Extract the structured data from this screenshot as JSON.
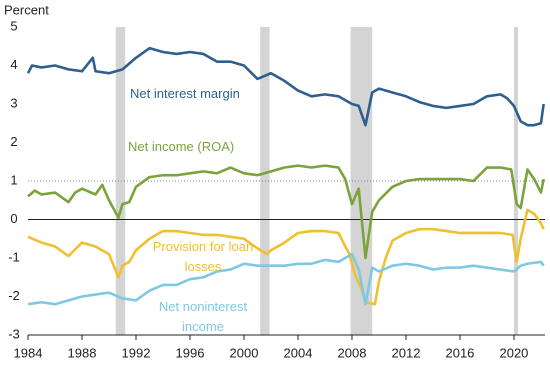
{
  "chart_data": {
    "type": "line",
    "y_label": "Percent",
    "xlim": [
      1984,
      2022.3
    ],
    "xticks": [
      1984,
      1988,
      1992,
      1996,
      2000,
      2004,
      2008,
      2012,
      2016,
      2020
    ],
    "ylim": [
      -3,
      5
    ],
    "yticks": [
      -3,
      -2,
      -1,
      0,
      1,
      2,
      3,
      4,
      5
    ],
    "reference_line": 1,
    "shaded_periods": [
      [
        1990.5,
        1991.2
      ],
      [
        2001.2,
        2001.9
      ],
      [
        2007.9,
        2009.5
      ],
      [
        2020.0,
        2020.3
      ]
    ],
    "series": [
      {
        "name": "Net interest margin",
        "color": "#2e5f8e",
        "x": [
          1984,
          1984.3,
          1985,
          1986,
          1987,
          1988,
          1988.8,
          1989,
          1990,
          1991,
          1992,
          1993,
          1994,
          1995,
          1996,
          1997,
          1998,
          1999,
          2000,
          2001,
          2002,
          2003,
          2004,
          2005,
          2006,
          2007,
          2008,
          2008.5,
          2009,
          2009.5,
          2010,
          2011,
          2012,
          2013,
          2014,
          2015,
          2016,
          2017,
          2018,
          2019,
          2019.5,
          2020,
          2020.5,
          2021,
          2021.5,
          2022,
          2022.2
        ],
        "values": [
          3.8,
          4.0,
          3.95,
          4.0,
          3.9,
          3.85,
          4.2,
          3.85,
          3.8,
          3.9,
          4.2,
          4.45,
          4.35,
          4.3,
          4.35,
          4.3,
          4.1,
          4.1,
          4.0,
          3.65,
          3.8,
          3.6,
          3.35,
          3.2,
          3.25,
          3.2,
          3.0,
          2.95,
          2.45,
          3.3,
          3.4,
          3.3,
          3.2,
          3.05,
          2.95,
          2.9,
          2.95,
          3.0,
          3.2,
          3.25,
          3.15,
          2.95,
          2.55,
          2.45,
          2.45,
          2.5,
          3.0
        ]
      },
      {
        "name": "Net income (ROA)",
        "color": "#7ba33c",
        "x": [
          1984,
          1984.5,
          1985,
          1986,
          1987,
          1987.5,
          1988,
          1989,
          1989.5,
          1990,
          1990.7,
          1991,
          1991.5,
          1992,
          1993,
          1994,
          1995,
          1996,
          1997,
          1998,
          1999,
          2000,
          2001,
          2002,
          2003,
          2004,
          2005,
          2006,
          2007,
          2007.5,
          2008,
          2008.5,
          2009,
          2009.5,
          2010,
          2011,
          2012,
          2013,
          2014,
          2015,
          2016,
          2017,
          2018,
          2019,
          2019.8,
          2020.2,
          2020.5,
          2021,
          2021.5,
          2022,
          2022.2
        ],
        "values": [
          0.6,
          0.75,
          0.65,
          0.7,
          0.45,
          0.7,
          0.8,
          0.65,
          0.9,
          0.5,
          0.05,
          0.4,
          0.45,
          0.85,
          1.1,
          1.15,
          1.15,
          1.2,
          1.25,
          1.2,
          1.35,
          1.2,
          1.15,
          1.25,
          1.35,
          1.4,
          1.35,
          1.4,
          1.35,
          1.05,
          0.4,
          0.8,
          -1.0,
          0.2,
          0.5,
          0.85,
          1.0,
          1.05,
          1.05,
          1.05,
          1.05,
          1.0,
          1.35,
          1.35,
          1.3,
          0.4,
          0.3,
          1.3,
          1.05,
          0.7,
          1.05
        ]
      },
      {
        "name": "Provision for loan losses",
        "color": "#f0c030",
        "x": [
          1984,
          1985,
          1986,
          1987,
          1988,
          1989,
          1990,
          1990.7,
          1991,
          1991.5,
          1992,
          1993,
          1994,
          1995,
          1996,
          1997,
          1998,
          1999,
          2000,
          2001,
          2001.7,
          2002,
          2003,
          2004,
          2005,
          2006,
          2007,
          2007.8,
          2008.3,
          2008.7,
          2009,
          2009.7,
          2010,
          2010.5,
          2011,
          2012,
          2013,
          2014,
          2015,
          2016,
          2017,
          2018,
          2019,
          2019.9,
          2020.2,
          2020.5,
          2021,
          2021.5,
          2022,
          2022.2
        ],
        "values": [
          -0.45,
          -0.6,
          -0.7,
          -0.95,
          -0.6,
          -0.7,
          -0.9,
          -1.5,
          -1.2,
          -1.1,
          -0.8,
          -0.5,
          -0.3,
          -0.3,
          -0.35,
          -0.4,
          -0.4,
          -0.45,
          -0.5,
          -0.75,
          -0.9,
          -0.8,
          -0.6,
          -0.35,
          -0.3,
          -0.3,
          -0.35,
          -0.9,
          -1.5,
          -1.8,
          -2.15,
          -2.2,
          -1.6,
          -1.0,
          -0.55,
          -0.35,
          -0.25,
          -0.25,
          -0.3,
          -0.35,
          -0.35,
          -0.35,
          -0.35,
          -0.4,
          -1.1,
          -0.5,
          0.25,
          0.15,
          -0.1,
          -0.25
        ]
      },
      {
        "name": "Net noninterest income",
        "color": "#7ec8e3",
        "x": [
          1984,
          1985,
          1986,
          1987,
          1988,
          1989,
          1990,
          1991,
          1992,
          1993,
          1994,
          1995,
          1996,
          1997,
          1998,
          1999,
          2000,
          2001,
          2002,
          2003,
          2004,
          2005,
          2006,
          2007,
          2008,
          2008.5,
          2009,
          2009.5,
          2010,
          2011,
          2012,
          2013,
          2014,
          2015,
          2016,
          2017,
          2018,
          2019,
          2020,
          2020.5,
          2021,
          2022,
          2022.2
        ],
        "values": [
          -2.2,
          -2.15,
          -2.2,
          -2.1,
          -2.0,
          -1.95,
          -1.9,
          -2.05,
          -2.1,
          -1.85,
          -1.7,
          -1.7,
          -1.55,
          -1.5,
          -1.35,
          -1.3,
          -1.15,
          -1.2,
          -1.2,
          -1.2,
          -1.15,
          -1.15,
          -1.05,
          -1.1,
          -0.9,
          -1.3,
          -2.2,
          -1.25,
          -1.35,
          -1.2,
          -1.15,
          -1.2,
          -1.3,
          -1.25,
          -1.25,
          -1.2,
          -1.25,
          -1.3,
          -1.35,
          -1.2,
          -1.15,
          -1.1,
          -1.2
        ]
      }
    ]
  }
}
